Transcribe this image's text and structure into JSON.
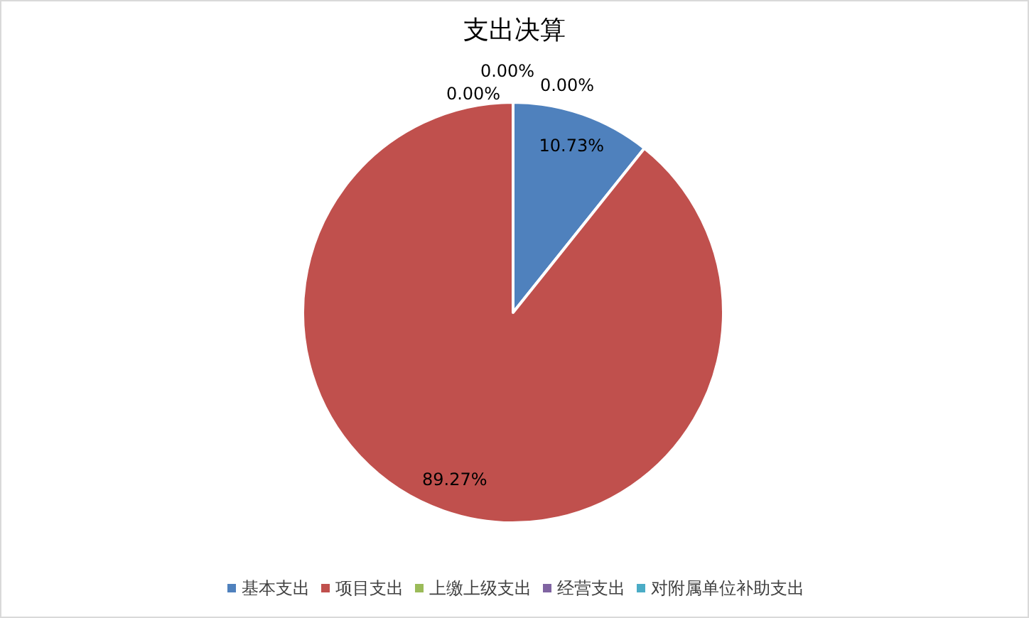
{
  "chart_data": {
    "type": "pie",
    "title": "支出决算",
    "categories": [
      "基本支出",
      "项目支出",
      "上缴上级支出",
      "经营支出",
      "对附属单位补助支出"
    ],
    "values": [
      10.73,
      89.27,
      0,
      0,
      0
    ],
    "colors": [
      "#4f81bd",
      "#c0504d",
      "#9bbb59",
      "#8064a2",
      "#4bacc6"
    ],
    "value_labels": [
      "10.73%",
      "89.27%",
      "0.00%",
      "0.00%",
      "0.00%"
    ],
    "legend": "bottom"
  }
}
